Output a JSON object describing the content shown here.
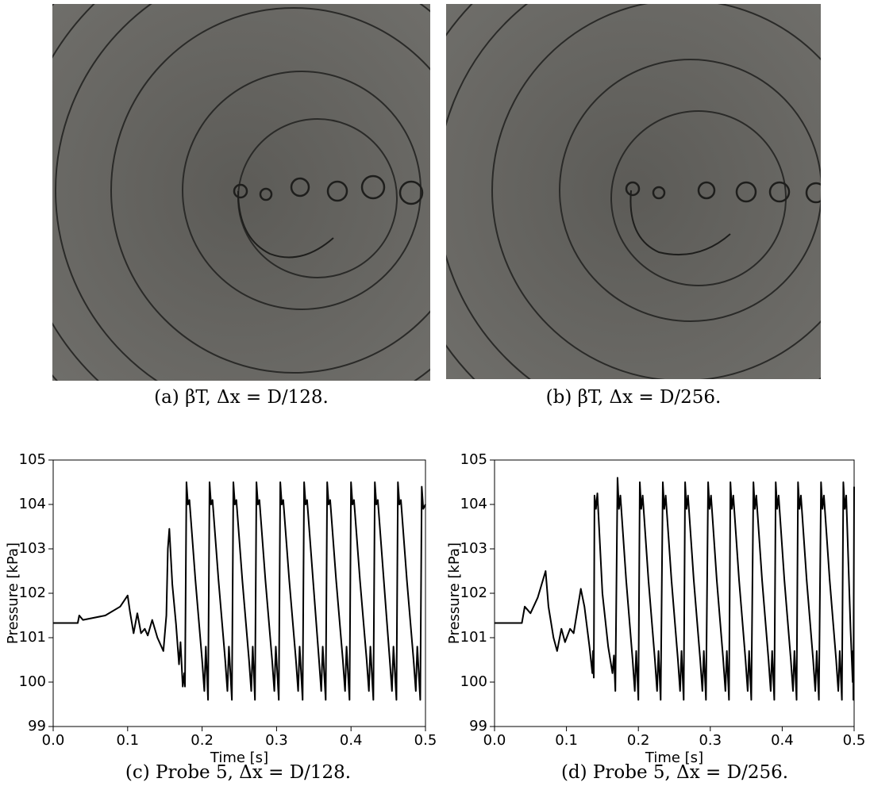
{
  "images": [
    {
      "caption": "(a) βT, Δx = D/128."
    },
    {
      "caption": "(b) βT, Δx = D/256."
    }
  ],
  "chart_data": [
    {
      "type": "line",
      "caption": "(c) Probe 5, Δx = D/128.",
      "xlabel": "Time [s]",
      "ylabel": "Pressure [kPa]",
      "xlim": [
        0,
        0.5
      ],
      "xticks": [
        {
          "value": 0,
          "label": "0.0"
        },
        0.1,
        0.2,
        0.3,
        0.4,
        0.5
      ],
      "ylim": [
        99,
        105
      ],
      "yticks": [
        99,
        100,
        101,
        102,
        103,
        104,
        105
      ],
      "grid": false,
      "series": [
        {
          "color": "#000000",
          "x": [
            0,
            0.033,
            0.035,
            0.04,
            0.07,
            0.09,
            0.1,
            0.103,
            0.108,
            0.113,
            0.118,
            0.123,
            0.127,
            0.133,
            0.14,
            0.148,
            0.152,
            0.154,
            0.156,
            0.16,
            0.165,
            0.169,
            0.171,
            0.174,
            0.176,
            0.177,
            0.179,
            0.181,
            0.183,
            0.191,
            0.2,
            0.203,
            0.205,
            0.208,
            0.21,
            0.212,
            0.214,
            0.222,
            0.231,
            0.234,
            0.236,
            0.24,
            0.242,
            0.244,
            0.246,
            0.254,
            0.263,
            0.266,
            0.268,
            0.271,
            0.273,
            0.275,
            0.277,
            0.285,
            0.294,
            0.297,
            0.299,
            0.303,
            0.305,
            0.307,
            0.309,
            0.317,
            0.326,
            0.329,
            0.331,
            0.335,
            0.337,
            0.339,
            0.341,
            0.349,
            0.357,
            0.36,
            0.362,
            0.366,
            0.368,
            0.37,
            0.372,
            0.38,
            0.389,
            0.392,
            0.394,
            0.398,
            0.4,
            0.402,
            0.404,
            0.412,
            0.421,
            0.424,
            0.426,
            0.43,
            0.432,
            0.434,
            0.436,
            0.444,
            0.452,
            0.455,
            0.457,
            0.461,
            0.463,
            0.465,
            0.467,
            0.475,
            0.484,
            0.487,
            0.489,
            0.493,
            0.495,
            0.497,
            0.5
          ],
          "values": [
            101.33,
            101.33,
            101.5,
            101.4,
            101.5,
            101.7,
            101.95,
            101.6,
            101.1,
            101.55,
            101.1,
            101.2,
            101.05,
            101.4,
            101.0,
            100.7,
            101.5,
            103.0,
            103.45,
            102.2,
            101.3,
            100.4,
            100.9,
            99.9,
            100.2,
            99.9,
            104.5,
            104.0,
            104.1,
            102.3,
            100.5,
            99.8,
            100.8,
            99.6,
            104.5,
            104.0,
            104.1,
            102.3,
            100.5,
            99.8,
            100.8,
            99.6,
            104.5,
            104.0,
            104.1,
            102.3,
            100.5,
            99.8,
            100.8,
            99.6,
            104.5,
            104.0,
            104.1,
            102.3,
            100.5,
            99.8,
            100.8,
            99.6,
            104.5,
            104.0,
            104.1,
            102.3,
            100.5,
            99.8,
            100.8,
            99.6,
            104.5,
            104.0,
            104.1,
            102.3,
            100.5,
            99.8,
            100.8,
            99.6,
            104.5,
            104.0,
            104.1,
            102.3,
            100.5,
            99.8,
            100.8,
            99.6,
            104.5,
            104.0,
            104.1,
            102.3,
            100.5,
            99.8,
            100.8,
            99.6,
            104.5,
            104.0,
            104.1,
            102.3,
            100.5,
            99.8,
            100.8,
            99.6,
            104.5,
            104.0,
            104.1,
            102.3,
            100.5,
            99.8,
            100.8,
            99.6,
            104.4,
            103.9,
            104.0
          ]
        }
      ]
    },
    {
      "type": "line",
      "caption": "(d) Probe 5, Δx = D/256.",
      "xlabel": "Time [s]",
      "ylabel": "Pressure [kPa]",
      "xlim": [
        0,
        0.5
      ],
      "xticks": [
        {
          "value": 0,
          "label": "0.0"
        },
        0.1,
        0.2,
        0.3,
        0.4,
        0.5
      ],
      "ylim": [
        99,
        105
      ],
      "yticks": [
        99,
        100,
        101,
        102,
        103,
        104,
        105
      ],
      "grid": false,
      "series": [
        {
          "color": "#000000",
          "x": [
            0,
            0.038,
            0.042,
            0.05,
            0.06,
            0.071,
            0.075,
            0.082,
            0.087,
            0.093,
            0.098,
            0.105,
            0.11,
            0.12,
            0.125,
            0.132,
            0.136,
            0.137,
            0.138,
            0.139,
            0.141,
            0.143,
            0.15,
            0.158,
            0.164,
            0.166,
            0.168,
            0.171,
            0.173,
            0.175,
            0.183,
            0.192,
            0.195,
            0.197,
            0.2,
            0.202,
            0.204,
            0.206,
            0.214,
            0.223,
            0.226,
            0.228,
            0.231,
            0.234,
            0.236,
            0.238,
            0.246,
            0.255,
            0.258,
            0.26,
            0.263,
            0.265,
            0.267,
            0.269,
            0.277,
            0.286,
            0.289,
            0.291,
            0.294,
            0.297,
            0.299,
            0.301,
            0.309,
            0.318,
            0.321,
            0.323,
            0.326,
            0.328,
            0.33,
            0.332,
            0.34,
            0.349,
            0.352,
            0.354,
            0.357,
            0.36,
            0.362,
            0.364,
            0.372,
            0.381,
            0.384,
            0.386,
            0.389,
            0.391,
            0.393,
            0.395,
            0.403,
            0.412,
            0.415,
            0.417,
            0.42,
            0.422,
            0.424,
            0.426,
            0.434,
            0.443,
            0.446,
            0.448,
            0.451,
            0.454,
            0.456,
            0.458,
            0.466,
            0.475,
            0.478,
            0.48,
            0.483,
            0.485,
            0.487,
            0.489,
            0.495,
            0.498,
            0.4985,
            0.499,
            0.5
          ],
          "values": [
            101.33,
            101.33,
            101.7,
            101.55,
            101.9,
            102.5,
            101.7,
            101.0,
            100.7,
            101.2,
            100.9,
            101.2,
            101.1,
            102.1,
            101.7,
            100.8,
            100.2,
            100.7,
            100.1,
            104.2,
            103.9,
            104.25,
            102.0,
            100.8,
            100.2,
            100.6,
            99.8,
            104.6,
            103.9,
            104.2,
            102.3,
            100.5,
            99.8,
            100.7,
            99.6,
            104.5,
            103.9,
            104.2,
            102.3,
            100.5,
            99.8,
            100.7,
            99.6,
            104.5,
            103.9,
            104.2,
            102.3,
            100.5,
            99.8,
            100.7,
            99.6,
            104.5,
            103.9,
            104.2,
            102.3,
            100.5,
            99.8,
            100.7,
            99.6,
            104.5,
            103.9,
            104.2,
            102.3,
            100.5,
            99.8,
            100.7,
            99.6,
            104.5,
            103.9,
            104.2,
            102.3,
            100.5,
            99.8,
            100.7,
            99.6,
            104.5,
            103.9,
            104.2,
            102.3,
            100.5,
            99.8,
            100.7,
            99.6,
            104.5,
            103.9,
            104.2,
            102.3,
            100.5,
            99.8,
            100.7,
            99.6,
            104.5,
            103.9,
            104.2,
            102.3,
            100.5,
            99.8,
            100.7,
            99.6,
            104.5,
            103.9,
            104.2,
            102.3,
            100.5,
            99.8,
            100.7,
            99.6,
            104.5,
            103.9,
            104.2,
            101.2,
            100.0,
            100.7,
            99.6,
            104.4
          ]
        }
      ]
    }
  ]
}
